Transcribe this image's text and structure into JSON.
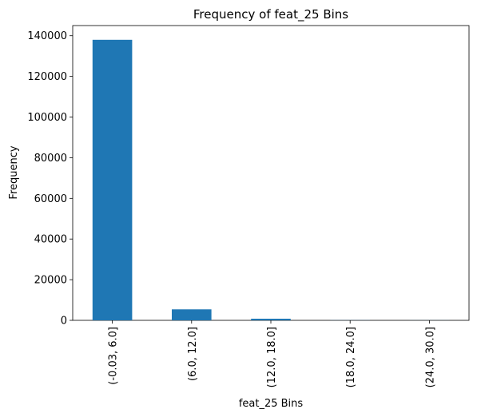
{
  "chart_data": {
    "type": "bar",
    "title": "Frequency of feat_25 Bins",
    "xlabel": "feat_25 Bins",
    "ylabel": "Frequency",
    "categories": [
      "(-0.03, 6.0]",
      "(6.0, 12.0]",
      "(12.0, 18.0]",
      "(18.0, 24.0]",
      "(24.0, 30.0]"
    ],
    "values": [
      138000,
      5400,
      800,
      60,
      30
    ],
    "ylim": [
      0,
      145000
    ],
    "yticks": [
      0,
      20000,
      40000,
      60000,
      80000,
      100000,
      120000,
      140000
    ],
    "bar_color": "#1f77b4",
    "grid": false,
    "legend": "none"
  }
}
